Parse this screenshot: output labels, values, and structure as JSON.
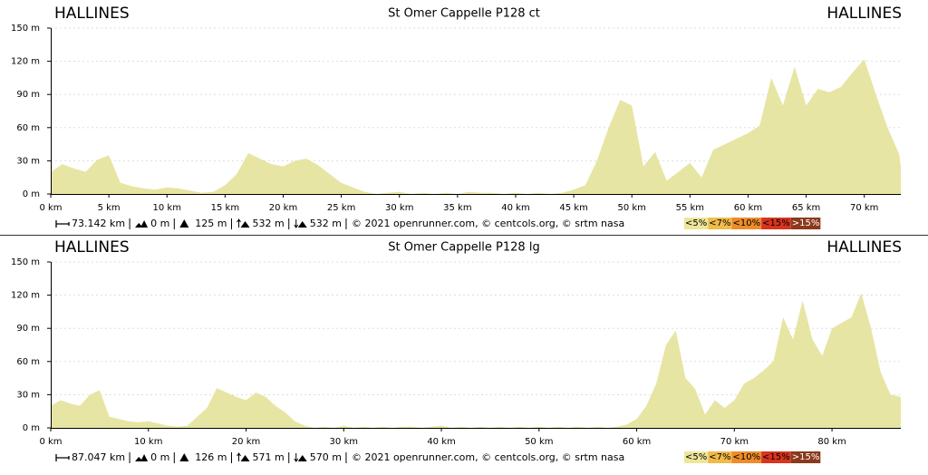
{
  "chart_data": [
    {
      "type": "area",
      "title": "St Omer Cappelle P128 ct",
      "start_label": "HALLINES",
      "end_label": "HALLINES",
      "x": [
        0,
        1,
        2,
        3,
        4,
        5,
        6,
        7,
        8,
        9,
        10,
        11,
        12,
        13,
        14,
        15,
        16,
        17,
        18,
        19,
        20,
        21,
        22,
        23,
        24,
        25,
        26,
        27,
        28,
        29,
        30,
        31,
        32,
        33,
        34,
        35,
        36,
        37,
        38,
        39,
        40,
        41,
        42,
        43,
        44,
        45,
        46,
        47,
        48,
        49,
        50,
        51,
        52,
        53,
        54,
        55,
        56,
        57,
        58,
        59,
        60,
        61,
        62,
        63,
        64,
        65,
        66,
        67,
        68,
        69,
        70,
        71,
        72,
        73,
        73.142
      ],
      "values": [
        20,
        27,
        23,
        20,
        31,
        35,
        10,
        7,
        5,
        4,
        6,
        5,
        3,
        1,
        2,
        8,
        18,
        37,
        32,
        27,
        25,
        30,
        32,
        26,
        18,
        10,
        6,
        2,
        0,
        1,
        2,
        0,
        1,
        0,
        1,
        0,
        2,
        1,
        1,
        0,
        1,
        0,
        1,
        0,
        1,
        4,
        8,
        30,
        60,
        85,
        80,
        25,
        38,
        12,
        20,
        28,
        15,
        40,
        45,
        50,
        55,
        62,
        105,
        80,
        115,
        80,
        95,
        92,
        97,
        110,
        122,
        90,
        60,
        36,
        25
      ],
      "color": "#e6e5a3",
      "xlim": [
        0,
        73.142
      ],
      "ylim": [
        0,
        150
      ],
      "grid": true,
      "xticks": [
        {
          "value": 0,
          "label": "0 km"
        },
        {
          "value": 5,
          "label": "5 km"
        },
        {
          "value": 10,
          "label": "10 km"
        },
        {
          "value": 15,
          "label": "15 km"
        },
        {
          "value": 20,
          "label": "20 km"
        },
        {
          "value": 25,
          "label": "25 km"
        },
        {
          "value": 30,
          "label": "30 km"
        },
        {
          "value": 35,
          "label": "35 km"
        },
        {
          "value": 40,
          "label": "40 km"
        },
        {
          "value": 45,
          "label": "45 km"
        },
        {
          "value": 50,
          "label": "50 km"
        },
        {
          "value": 55,
          "label": "55 km"
        },
        {
          "value": 60,
          "label": "60 km"
        },
        {
          "value": 65,
          "label": "65 km"
        },
        {
          "value": 70,
          "label": "70 km"
        }
      ],
      "yticks": [
        {
          "value": 0,
          "label": "0 m"
        },
        {
          "value": 30,
          "label": "30 m"
        },
        {
          "value": 60,
          "label": "60 m"
        },
        {
          "value": 90,
          "label": "90 m"
        },
        {
          "value": 120,
          "label": "120 m"
        },
        {
          "value": 150,
          "label": "150 m"
        }
      ],
      "stats": [
        "73.142 km",
        "0 m",
        "125 m",
        "532 m",
        "532 m"
      ],
      "credits": "© 2021 openrunner.com, © centcols.org, © srtm nasa",
      "legend": [
        {
          "label": "<5%",
          "color": "#ece79a"
        },
        {
          "label": "<7%",
          "color": "#f1bb4a"
        },
        {
          "label": "<10%",
          "color": "#ee8c2a"
        },
        {
          "label": "<15%",
          "color": "#d8341f"
        },
        {
          "label": ">15%",
          "color": "#8a3a1c"
        }
      ]
    },
    {
      "type": "area",
      "title": "St Omer Cappelle P128 lg",
      "start_label": "HALLINES",
      "end_label": "HALLINES",
      "x": [
        0,
        1,
        2,
        3,
        4,
        5,
        6,
        7,
        8,
        9,
        10,
        11,
        12,
        13,
        14,
        15,
        16,
        17,
        18,
        19,
        20,
        21,
        22,
        23,
        24,
        25,
        26,
        27,
        28,
        29,
        30,
        31,
        32,
        33,
        34,
        35,
        36,
        37,
        38,
        39,
        40,
        41,
        42,
        43,
        44,
        45,
        46,
        47,
        48,
        49,
        50,
        51,
        52,
        53,
        54,
        55,
        56,
        57,
        58,
        59,
        60,
        61,
        62,
        63,
        64,
        65,
        66,
        67,
        68,
        69,
        70,
        71,
        72,
        73,
        74,
        75,
        76,
        77,
        78,
        79,
        80,
        81,
        82,
        83,
        84,
        85,
        86,
        87,
        87.047
      ],
      "values": [
        20,
        25,
        22,
        20,
        30,
        34,
        10,
        8,
        6,
        5,
        6,
        4,
        2,
        1,
        2,
        10,
        18,
        36,
        32,
        28,
        25,
        32,
        28,
        20,
        14,
        6,
        2,
        0,
        1,
        0,
        2,
        0,
        1,
        0,
        1,
        0,
        1,
        1,
        0,
        1,
        2,
        0,
        1,
        0,
        1,
        0,
        1,
        0,
        1,
        0,
        1,
        0,
        1,
        0,
        1,
        0,
        1,
        0,
        1,
        3,
        8,
        20,
        40,
        75,
        88,
        45,
        35,
        12,
        25,
        18,
        25,
        40,
        45,
        52,
        60,
        100,
        80,
        115,
        80,
        65,
        90,
        95,
        100,
        122,
        90,
        50,
        30,
        28,
        25
      ],
      "color": "#e6e5a3",
      "xlim": [
        0,
        87.047
      ],
      "ylim": [
        0,
        150
      ],
      "grid": true,
      "xticks": [
        {
          "value": 0,
          "label": "0 km"
        },
        {
          "value": 10,
          "label": "10 km"
        },
        {
          "value": 20,
          "label": "20 km"
        },
        {
          "value": 30,
          "label": "30 km"
        },
        {
          "value": 40,
          "label": "40 km"
        },
        {
          "value": 50,
          "label": "50 km"
        },
        {
          "value": 60,
          "label": "60 km"
        },
        {
          "value": 70,
          "label": "70 km"
        },
        {
          "value": 80,
          "label": "80 km"
        }
      ],
      "yticks": [
        {
          "value": 0,
          "label": "0 m"
        },
        {
          "value": 30,
          "label": "30 m"
        },
        {
          "value": 60,
          "label": "60 m"
        },
        {
          "value": 90,
          "label": "90 m"
        },
        {
          "value": 120,
          "label": "120 m"
        },
        {
          "value": 150,
          "label": "150 m"
        }
      ],
      "stats": [
        "87.047 km",
        "0 m",
        "126 m",
        "571 m",
        "570 m"
      ],
      "credits": "© 2021 openrunner.com, © centcols.org, © srtm nasa",
      "legend": [
        {
          "label": "<5%",
          "color": "#ece79a"
        },
        {
          "label": "<7%",
          "color": "#f1bb4a"
        },
        {
          "label": "<10%",
          "color": "#ee8c2a"
        },
        {
          "label": "<15%",
          "color": "#d8341f"
        },
        {
          "label": ">15%",
          "color": "#8a3a1c"
        }
      ]
    }
  ]
}
